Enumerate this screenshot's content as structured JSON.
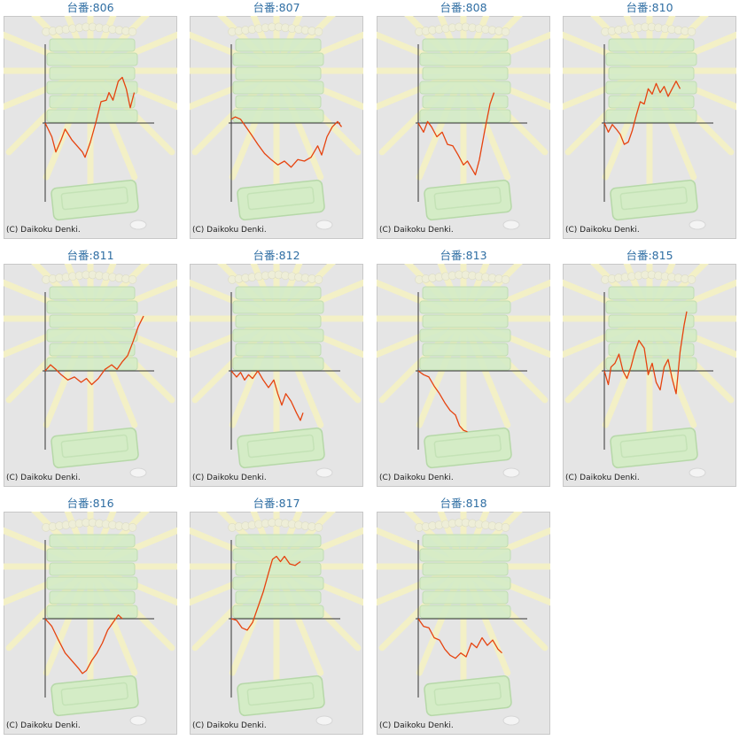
{
  "page": {
    "machine_label_prefix": "台番:",
    "copyright": "(C) Daikoku Denki.",
    "colors": {
      "line": "#e6430f",
      "panel_bg": "#e5e5e5",
      "panel_border": "#c8c8c8",
      "title": "#2f6ea3",
      "axis": "#333333"
    }
  },
  "charts": [
    {
      "title": "台番:806"
    },
    {
      "title": "台番:807"
    },
    {
      "title": "台番:808"
    },
    {
      "title": "台番:810"
    },
    {
      "title": "台番:811"
    },
    {
      "title": "台番:812"
    },
    {
      "title": "台番:813"
    },
    {
      "title": "台番:815"
    },
    {
      "title": "台番:816"
    },
    {
      "title": "台番:817"
    },
    {
      "title": "台番:818"
    }
  ],
  "chart_data": [
    {
      "type": "line",
      "title": "台番:806",
      "ylim": [
        -100,
        100
      ],
      "xlim": [
        0,
        100
      ],
      "series": [
        {
          "values": [
            [
              0,
              0
            ],
            [
              5,
              -18
            ],
            [
              8,
              -38
            ],
            [
              12,
              -22
            ],
            [
              15,
              -8
            ],
            [
              20,
              -22
            ],
            [
              24,
              -30
            ],
            [
              28,
              -38
            ],
            [
              30,
              -45
            ],
            [
              34,
              -25
            ],
            [
              38,
              0
            ],
            [
              42,
              28
            ],
            [
              46,
              30
            ],
            [
              48,
              40
            ],
            [
              51,
              30
            ],
            [
              55,
              55
            ],
            [
              58,
              60
            ],
            [
              61,
              45
            ],
            [
              64,
              20
            ],
            [
              67,
              40
            ]
          ]
        }
      ]
    },
    {
      "type": "line",
      "title": "台番:807",
      "ylim": [
        -100,
        100
      ],
      "xlim": [
        0,
        100
      ],
      "series": [
        {
          "values": [
            [
              0,
              5
            ],
            [
              3,
              8
            ],
            [
              7,
              5
            ],
            [
              11,
              -5
            ],
            [
              15,
              -15
            ],
            [
              20,
              -28
            ],
            [
              25,
              -40
            ],
            [
              30,
              -48
            ],
            [
              35,
              -55
            ],
            [
              40,
              -50
            ],
            [
              45,
              -58
            ],
            [
              50,
              -48
            ],
            [
              55,
              -50
            ],
            [
              60,
              -45
            ],
            [
              65,
              -30
            ],
            [
              68,
              -42
            ],
            [
              72,
              -18
            ],
            [
              76,
              -5
            ],
            [
              80,
              2
            ],
            [
              83,
              -5
            ]
          ]
        }
      ]
    },
    {
      "type": "line",
      "title": "台番:808",
      "ylim": [
        -100,
        100
      ],
      "xlim": [
        0,
        100
      ],
      "series": [
        {
          "values": [
            [
              0,
              0
            ],
            [
              4,
              -12
            ],
            [
              7,
              2
            ],
            [
              10,
              -5
            ],
            [
              14,
              -18
            ],
            [
              18,
              -12
            ],
            [
              22,
              -28
            ],
            [
              26,
              -30
            ],
            [
              30,
              -42
            ],
            [
              34,
              -55
            ],
            [
              37,
              -50
            ],
            [
              41,
              -62
            ],
            [
              43,
              -68
            ],
            [
              46,
              -48
            ],
            [
              50,
              -10
            ],
            [
              54,
              25
            ],
            [
              57,
              40
            ]
          ]
        }
      ]
    },
    {
      "type": "line",
      "title": "台番:810",
      "ylim": [
        -100,
        100
      ],
      "xlim": [
        0,
        100
      ],
      "series": [
        {
          "values": [
            [
              0,
              0
            ],
            [
              3,
              -12
            ],
            [
              6,
              -2
            ],
            [
              9,
              -8
            ],
            [
              12,
              -15
            ],
            [
              15,
              -28
            ],
            [
              18,
              -25
            ],
            [
              21,
              -10
            ],
            [
              24,
              10
            ],
            [
              27,
              28
            ],
            [
              30,
              25
            ],
            [
              33,
              45
            ],
            [
              36,
              38
            ],
            [
              39,
              52
            ],
            [
              42,
              40
            ],
            [
              45,
              48
            ],
            [
              48,
              35
            ],
            [
              51,
              45
            ],
            [
              54,
              55
            ],
            [
              57,
              45
            ]
          ]
        }
      ]
    },
    {
      "type": "line",
      "title": "台番:811",
      "ylim": [
        -100,
        100
      ],
      "xlim": [
        0,
        100
      ],
      "series": [
        {
          "values": [
            [
              0,
              0
            ],
            [
              4,
              8
            ],
            [
              8,
              2
            ],
            [
              12,
              -5
            ],
            [
              17,
              -12
            ],
            [
              22,
              -8
            ],
            [
              27,
              -15
            ],
            [
              31,
              -10
            ],
            [
              35,
              -18
            ],
            [
              40,
              -10
            ],
            [
              45,
              2
            ],
            [
              50,
              8
            ],
            [
              54,
              2
            ],
            [
              58,
              12
            ],
            [
              62,
              20
            ],
            [
              66,
              38
            ],
            [
              70,
              58
            ],
            [
              74,
              72
            ]
          ]
        }
      ]
    },
    {
      "type": "line",
      "title": "台番:812",
      "ylim": [
        -100,
        100
      ],
      "xlim": [
        0,
        100
      ],
      "series": [
        {
          "values": [
            [
              0,
              0
            ],
            [
              4,
              -8
            ],
            [
              7,
              -2
            ],
            [
              10,
              -12
            ],
            [
              13,
              -5
            ],
            [
              16,
              -10
            ],
            [
              20,
              0
            ],
            [
              24,
              -12
            ],
            [
              28,
              -22
            ],
            [
              32,
              -12
            ],
            [
              35,
              -30
            ],
            [
              38,
              -45
            ],
            [
              41,
              -30
            ],
            [
              45,
              -40
            ],
            [
              49,
              -55
            ],
            [
              52,
              -65
            ],
            [
              54,
              -55
            ]
          ]
        }
      ]
    },
    {
      "type": "line",
      "title": "台番:813",
      "ylim": [
        -100,
        100
      ],
      "xlim": [
        0,
        100
      ],
      "series": [
        {
          "values": [
            [
              0,
              0
            ],
            [
              4,
              -5
            ],
            [
              8,
              -8
            ],
            [
              12,
              -20
            ],
            [
              16,
              -30
            ],
            [
              20,
              -42
            ],
            [
              24,
              -52
            ],
            [
              28,
              -58
            ],
            [
              31,
              -72
            ],
            [
              34,
              -78
            ],
            [
              37,
              -80
            ]
          ]
        }
      ]
    },
    {
      "type": "line",
      "title": "台番:815",
      "ylim": [
        -100,
        100
      ],
      "xlim": [
        0,
        100
      ],
      "series": [
        {
          "values": [
            [
              0,
              0
            ],
            [
              3,
              -18
            ],
            [
              5,
              5
            ],
            [
              8,
              10
            ],
            [
              11,
              22
            ],
            [
              14,
              0
            ],
            [
              17,
              -10
            ],
            [
              20,
              5
            ],
            [
              23,
              25
            ],
            [
              26,
              40
            ],
            [
              30,
              30
            ],
            [
              33,
              -5
            ],
            [
              36,
              10
            ],
            [
              39,
              -15
            ],
            [
              42,
              -25
            ],
            [
              45,
              5
            ],
            [
              48,
              15
            ],
            [
              51,
              -10
            ],
            [
              54,
              -30
            ],
            [
              57,
              25
            ],
            [
              60,
              60
            ],
            [
              62,
              78
            ]
          ]
        }
      ]
    },
    {
      "type": "line",
      "title": "台番:816",
      "ylim": [
        -100,
        100
      ],
      "xlim": [
        0,
        100
      ],
      "series": [
        {
          "values": [
            [
              0,
              0
            ],
            [
              5,
              -10
            ],
            [
              10,
              -28
            ],
            [
              15,
              -45
            ],
            [
              20,
              -55
            ],
            [
              25,
              -65
            ],
            [
              28,
              -72
            ],
            [
              31,
              -68
            ],
            [
              35,
              -55
            ],
            [
              39,
              -45
            ],
            [
              43,
              -32
            ],
            [
              47,
              -15
            ],
            [
              51,
              -5
            ],
            [
              55,
              5
            ],
            [
              58,
              0
            ]
          ]
        }
      ]
    },
    {
      "type": "line",
      "title": "台番:817",
      "ylim": [
        -100,
        100
      ],
      "xlim": [
        0,
        100
      ],
      "series": [
        {
          "values": [
            [
              0,
              0
            ],
            [
              4,
              -2
            ],
            [
              8,
              -12
            ],
            [
              12,
              -15
            ],
            [
              16,
              -5
            ],
            [
              20,
              15
            ],
            [
              24,
              35
            ],
            [
              28,
              60
            ],
            [
              31,
              78
            ],
            [
              34,
              82
            ],
            [
              37,
              75
            ],
            [
              40,
              82
            ],
            [
              44,
              72
            ],
            [
              48,
              70
            ],
            [
              52,
              75
            ]
          ]
        }
      ]
    },
    {
      "type": "line",
      "title": "台番:818",
      "ylim": [
        -100,
        100
      ],
      "xlim": [
        0,
        100
      ],
      "series": [
        {
          "values": [
            [
              0,
              0
            ],
            [
              4,
              -10
            ],
            [
              8,
              -12
            ],
            [
              12,
              -25
            ],
            [
              16,
              -28
            ],
            [
              20,
              -40
            ],
            [
              24,
              -48
            ],
            [
              28,
              -52
            ],
            [
              32,
              -45
            ],
            [
              36,
              -50
            ],
            [
              40,
              -32
            ],
            [
              44,
              -38
            ],
            [
              48,
              -25
            ],
            [
              52,
              -35
            ],
            [
              56,
              -28
            ],
            [
              60,
              -40
            ],
            [
              63,
              -45
            ]
          ]
        }
      ]
    }
  ]
}
